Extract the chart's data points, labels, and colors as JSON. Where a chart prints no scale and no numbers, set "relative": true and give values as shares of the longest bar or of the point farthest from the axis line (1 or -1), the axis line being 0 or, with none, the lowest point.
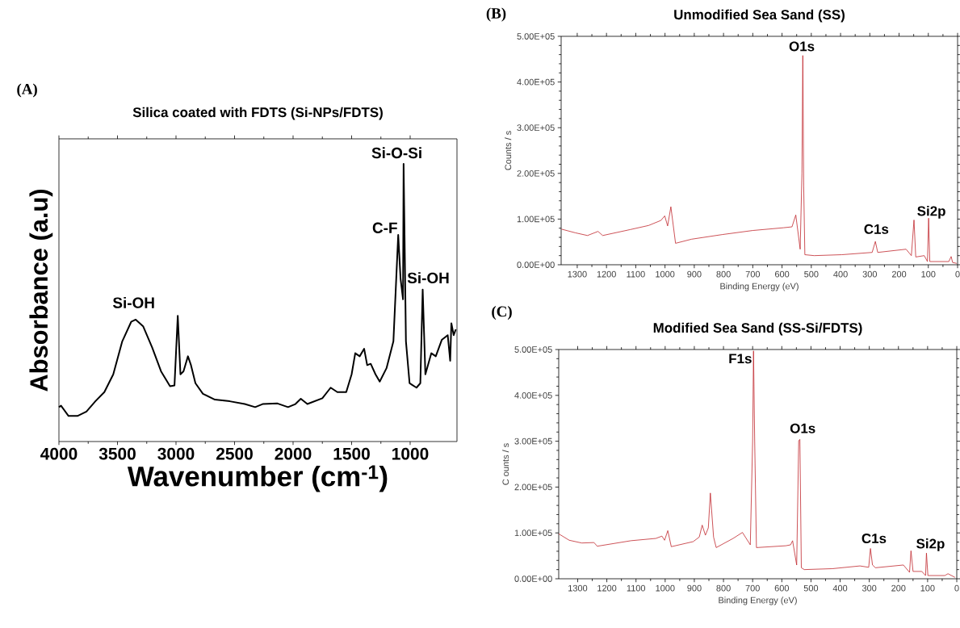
{
  "chart_data": [
    {
      "type": "line",
      "relative": true,
      "title": "Silica coated with FDTS (Si-NPs/FDTS)",
      "xlabel": "Wavenumber (cm$^{-1}$)",
      "ylabel": "Absorbance (a.u)",
      "xlim": [
        4000,
        600
      ],
      "xticks": [
        4000,
        3500,
        3000,
        2500,
        2000,
        1500,
        1000
      ],
      "series": [
        {
          "color": "#000000",
          "x": [
            4000,
            3982,
            3918,
            3842,
            3765,
            3689,
            3612,
            3536,
            3459,
            3383,
            3344,
            3281,
            3204,
            3128,
            3051,
            3013,
            2985,
            2962,
            2936,
            2898,
            2872,
            2834,
            2770,
            2668,
            2541,
            2413,
            2324,
            2260,
            2133,
            2043,
            1980,
            1934,
            1878,
            1750,
            1679,
            1622,
            1546,
            1500,
            1469,
            1431,
            1393,
            1367,
            1337,
            1296,
            1260,
            1202,
            1143,
            1102,
            1082,
            1061,
            1056,
            1036,
            1005,
            946,
            913,
            893,
            870,
            819,
            781,
            730,
            679,
            658,
            648,
            628,
            610
          ],
          "values": [
            0.124,
            0.129,
            0.092,
            0.092,
            0.108,
            0.145,
            0.178,
            0.242,
            0.361,
            0.431,
            0.439,
            0.415,
            0.339,
            0.253,
            0.199,
            0.202,
            0.453,
            0.242,
            0.253,
            0.307,
            0.275,
            0.21,
            0.172,
            0.151,
            0.145,
            0.135,
            0.124,
            0.135,
            0.137,
            0.124,
            0.135,
            0.154,
            0.135,
            0.156,
            0.194,
            0.178,
            0.178,
            0.242,
            0.318,
            0.307,
            0.334,
            0.275,
            0.28,
            0.242,
            0.216,
            0.264,
            0.361,
            0.744,
            0.587,
            0.512,
            1.0,
            0.361,
            0.21,
            0.194,
            0.21,
            0.547,
            0.242,
            0.318,
            0.307,
            0.366,
            0.383,
            0.291,
            0.426,
            0.383,
            0.404
          ]
        }
      ],
      "annotations": [
        "(A)",
        "Si-OH",
        "Si-O-Si",
        "C-F",
        "Si-OH"
      ]
    },
    {
      "type": "line",
      "title": "Unmodified Sea Sand (SS)",
      "xlabel": "Binding Energy (eV)",
      "ylabel": "Counts / s",
      "xlim": [
        1355,
        0
      ],
      "xticks": [
        1300,
        1200,
        1100,
        1000,
        900,
        800,
        700,
        600,
        500,
        400,
        300,
        200,
        100,
        0
      ],
      "ylim": [
        0,
        500000
      ],
      "yticks": [
        {
          "value": 0,
          "label": "0.00E+00"
        },
        {
          "value": 100000,
          "label": "1.00E+05"
        },
        {
          "value": 200000,
          "label": "2.00E+05"
        },
        {
          "value": 300000,
          "label": "3.00E+05"
        },
        {
          "value": 400000,
          "label": "4.00E+05"
        },
        {
          "value": 500000,
          "label": "5.00E+05"
        }
      ],
      "series": [
        {
          "color": "#c0272d",
          "x": [
            1354,
            1307,
            1265,
            1229,
            1213,
            1119,
            1056,
            1014,
            1001,
            991,
            980,
            964,
            909,
            805,
            700,
            595,
            566,
            553,
            538,
            532,
            529,
            526,
            522,
            490,
            396,
            292,
            281,
            273,
            176,
            158,
            149,
            143,
            114,
            103,
            99,
            95,
            30,
            22,
            17,
            3
          ],
          "values": [
            78000,
            70000,
            64000,
            73000,
            64000,
            77000,
            86000,
            97000,
            107000,
            85000,
            127000,
            47000,
            56000,
            66000,
            75000,
            81000,
            83000,
            109000,
            34000,
            200000,
            458000,
            173000,
            22000,
            20000,
            22000,
            27000,
            51000,
            27000,
            34000,
            20000,
            98000,
            17000,
            20000,
            7000,
            102000,
            7000,
            7000,
            18000,
            5000,
            3000
          ]
        }
      ],
      "annotations": [
        "(B)",
        "O1s",
        "C1s",
        "Si2p"
      ]
    },
    {
      "type": "line",
      "title": "Modified Sea Sand (SS-Si/FDTS)",
      "xlabel": "Binding Energy (eV)",
      "ylabel": "C ounts / s",
      "xlim": [
        1365,
        0
      ],
      "xticks": [
        1300,
        1200,
        1100,
        1000,
        900,
        800,
        700,
        600,
        500,
        400,
        300,
        200,
        100,
        0
      ],
      "ylim": [
        0,
        500000
      ],
      "yticks": [
        {
          "value": 0,
          "label": "0.00E+00"
        },
        {
          "value": 100000,
          "label": "1.00E+05"
        },
        {
          "value": 200000,
          "label": "2.00E+05"
        },
        {
          "value": 300000,
          "label": "3.00E+05"
        },
        {
          "value": 400000,
          "label": "4.00E+05"
        },
        {
          "value": 500000,
          "label": "5.00E+05"
        }
      ],
      "series": [
        {
          "color": "#c0272d",
          "x": [
            1365,
            1329,
            1286,
            1244,
            1233,
            1117,
            1032,
            1011,
            1002,
            991,
            979,
            904,
            883,
            873,
            862,
            852,
            845,
            834,
            825,
            767,
            735,
            708,
            700,
            697,
            693,
            687,
            586,
            570,
            563,
            549,
            542,
            538,
            533,
            523,
            427,
            332,
            302,
            296,
            289,
            279,
            183,
            162,
            157,
            150,
            120,
            107,
            104,
            99,
            41,
            30,
            6
          ],
          "values": [
            98000,
            84000,
            78000,
            79000,
            71000,
            83000,
            88000,
            93000,
            84000,
            105000,
            70000,
            81000,
            91000,
            117000,
            95000,
            111000,
            187000,
            91000,
            68000,
            88000,
            101000,
            74000,
            301000,
            497000,
            301000,
            68000,
            72000,
            74000,
            83000,
            30000,
            301000,
            304000,
            24000,
            20000,
            22000,
            28000,
            25000,
            66000,
            30000,
            24000,
            30000,
            14000,
            61000,
            16000,
            16000,
            7000,
            56000,
            7000,
            7000,
            11000,
            3000
          ]
        }
      ],
      "annotations": [
        "(C)",
        "F1s",
        "O1s",
        "C1s",
        "Si2p"
      ]
    }
  ]
}
